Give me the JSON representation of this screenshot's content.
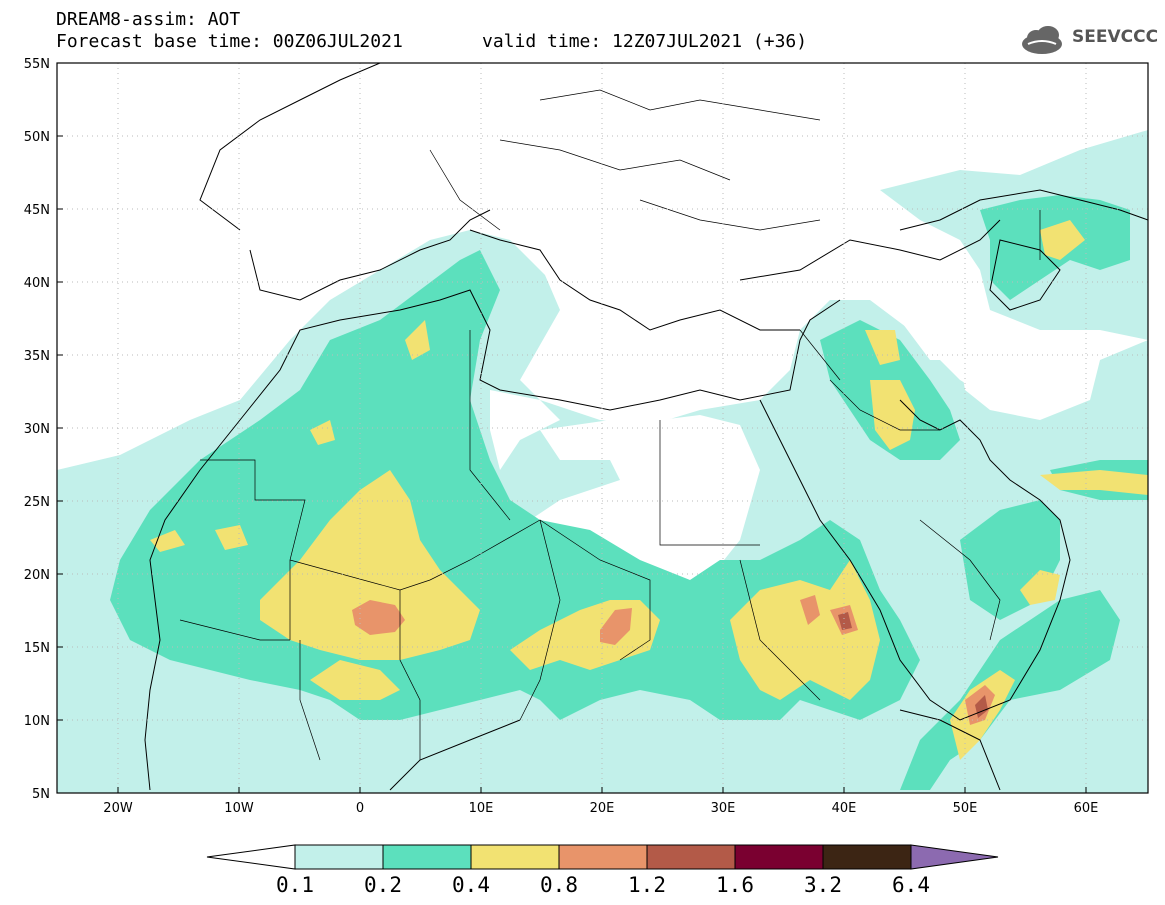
{
  "header": {
    "title": "DREAM8-assim: AOT",
    "base_time": "Forecast base time: 00Z06JUL2021",
    "valid_time": "valid time: 12Z07JUL2021 (+36)"
  },
  "logo": {
    "text": "SEEVCCC",
    "icon": "cloud-icon"
  },
  "map": {
    "lat_labels": [
      "55N",
      "50N",
      "45N",
      "40N",
      "35N",
      "30N",
      "25N",
      "20N",
      "15N",
      "10N",
      "5N"
    ],
    "lon_labels": [
      "20W",
      "10W",
      "0",
      "10E",
      "20E",
      "30E",
      "40E",
      "50E",
      "60E"
    ],
    "lon_range": [
      -25,
      65
    ],
    "lat_range": [
      5,
      55
    ]
  },
  "colorbar": {
    "labels": [
      "0.1",
      "0.2",
      "0.4",
      "0.8",
      "1.2",
      "1.6",
      "3.2",
      "6.4"
    ],
    "colors": [
      "#c2f0ea",
      "#5ce0bd",
      "#f2e272",
      "#e8946a",
      "#b35a48",
      "#7a0030",
      "#3c2514",
      "#8c6ab0"
    ]
  },
  "colors": {
    "level_0_1": "#c2f0ea",
    "level_0_2": "#5ce0bd",
    "level_0_4": "#f2e272",
    "level_0_8": "#e8946a",
    "level_1_2": "#b35a48"
  }
}
